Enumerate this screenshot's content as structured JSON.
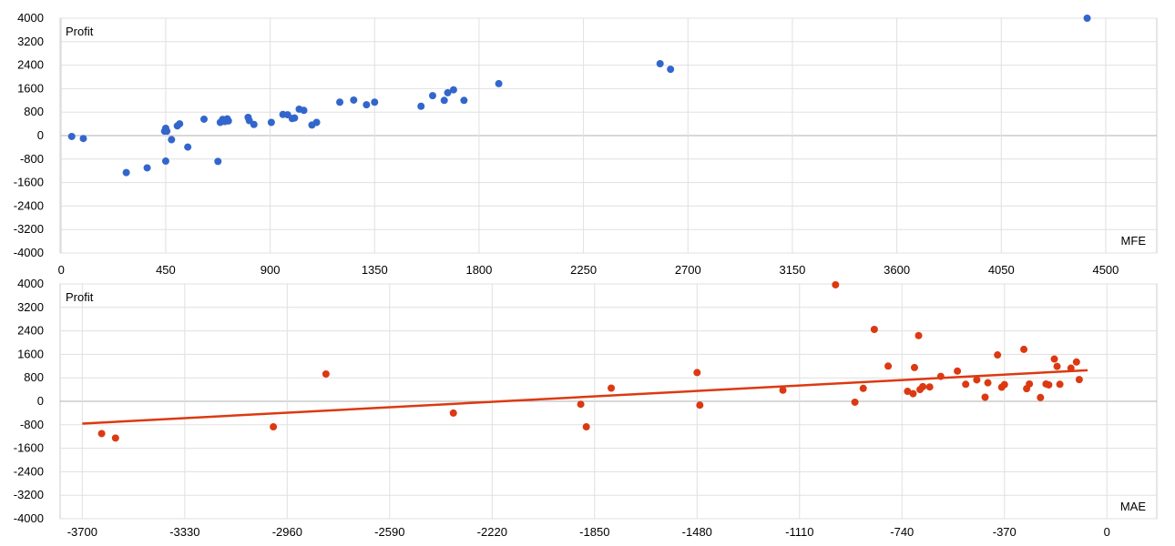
{
  "chart_data": [
    {
      "type": "scatter",
      "ylabel": "Profit",
      "xlabel": "MFE",
      "xlim": [
        -5,
        4720
      ],
      "ylim": [
        -4000,
        4000
      ],
      "x_ticks": [
        "0",
        "450",
        "900",
        "1350",
        "1800",
        "2250",
        "2700",
        "3150",
        "3600",
        "4050",
        "4500"
      ],
      "y_ticks": [
        "4000",
        "3200",
        "2400",
        "1600",
        "800",
        "0",
        "-800",
        "-1600",
        "-2400",
        "-3200",
        "-4000"
      ],
      "grid": true,
      "point_color": "#3366cc",
      "trendline": null,
      "points": [
        [
          45,
          -30
        ],
        [
          95,
          -100
        ],
        [
          280,
          -1260
        ],
        [
          370,
          -1100
        ],
        [
          445,
          150
        ],
        [
          450,
          250
        ],
        [
          455,
          150
        ],
        [
          450,
          -870
        ],
        [
          475,
          -140
        ],
        [
          500,
          330
        ],
        [
          510,
          400
        ],
        [
          545,
          -390
        ],
        [
          615,
          560
        ],
        [
          675,
          -880
        ],
        [
          685,
          450
        ],
        [
          695,
          550
        ],
        [
          705,
          480
        ],
        [
          715,
          570
        ],
        [
          720,
          500
        ],
        [
          805,
          620
        ],
        [
          810,
          510
        ],
        [
          830,
          380
        ],
        [
          905,
          450
        ],
        [
          955,
          720
        ],
        [
          975,
          710
        ],
        [
          995,
          580
        ],
        [
          1005,
          600
        ],
        [
          1025,
          900
        ],
        [
          1045,
          860
        ],
        [
          1080,
          360
        ],
        [
          1100,
          450
        ],
        [
          1200,
          1140
        ],
        [
          1260,
          1210
        ],
        [
          1315,
          1050
        ],
        [
          1350,
          1140
        ],
        [
          1550,
          1000
        ],
        [
          1600,
          1360
        ],
        [
          1650,
          1200
        ],
        [
          1665,
          1460
        ],
        [
          1690,
          1560
        ],
        [
          1735,
          1200
        ],
        [
          1885,
          1770
        ],
        [
          2580,
          2450
        ],
        [
          2625,
          2260
        ],
        [
          4420,
          4000
        ]
      ]
    },
    {
      "type": "scatter",
      "ylabel": "Profit",
      "xlabel": "MAE",
      "xlim": [
        -3780,
        180
      ],
      "ylim": [
        -4000,
        4000
      ],
      "x_ticks": [
        "-3700",
        "-3330",
        "-2960",
        "-2590",
        "-2220",
        "-1850",
        "-1480",
        "-1110",
        "-740",
        "-370",
        "0"
      ],
      "y_ticks": [
        "4000",
        "3200",
        "2400",
        "1600",
        "800",
        "0",
        "-800",
        "-1600",
        "-2400",
        "-3200",
        "-4000"
      ],
      "grid": true,
      "point_color": "#dc3912",
      "trendline": {
        "type": "linear",
        "from": [
          -3700,
          -760
        ],
        "to": [
          -70,
          1060
        ],
        "color": "#dc3912"
      },
      "points": [
        [
          -3630,
          -1100
        ],
        [
          -3580,
          -1250
        ],
        [
          -3010,
          -870
        ],
        [
          -2820,
          930
        ],
        [
          -2360,
          -400
        ],
        [
          -1900,
          -100
        ],
        [
          -1880,
          -870
        ],
        [
          -1790,
          450
        ],
        [
          -1480,
          980
        ],
        [
          -1470,
          -130
        ],
        [
          -1170,
          380
        ],
        [
          -980,
          3970
        ],
        [
          -910,
          -30
        ],
        [
          -880,
          440
        ],
        [
          -840,
          2450
        ],
        [
          -790,
          1200
        ],
        [
          -720,
          340
        ],
        [
          -700,
          260
        ],
        [
          -695,
          1150
        ],
        [
          -680,
          2240
        ],
        [
          -675,
          400
        ],
        [
          -665,
          500
        ],
        [
          -640,
          490
        ],
        [
          -600,
          850
        ],
        [
          -540,
          1030
        ],
        [
          -510,
          580
        ],
        [
          -470,
          730
        ],
        [
          -440,
          140
        ],
        [
          -430,
          630
        ],
        [
          -395,
          1580
        ],
        [
          -380,
          480
        ],
        [
          -370,
          570
        ],
        [
          -300,
          1770
        ],
        [
          -290,
          430
        ],
        [
          -280,
          590
        ],
        [
          -240,
          130
        ],
        [
          -220,
          590
        ],
        [
          -210,
          560
        ],
        [
          -190,
          1440
        ],
        [
          -180,
          1190
        ],
        [
          -170,
          580
        ],
        [
          -130,
          1130
        ],
        [
          -110,
          1340
        ],
        [
          -100,
          740
        ]
      ]
    }
  ]
}
